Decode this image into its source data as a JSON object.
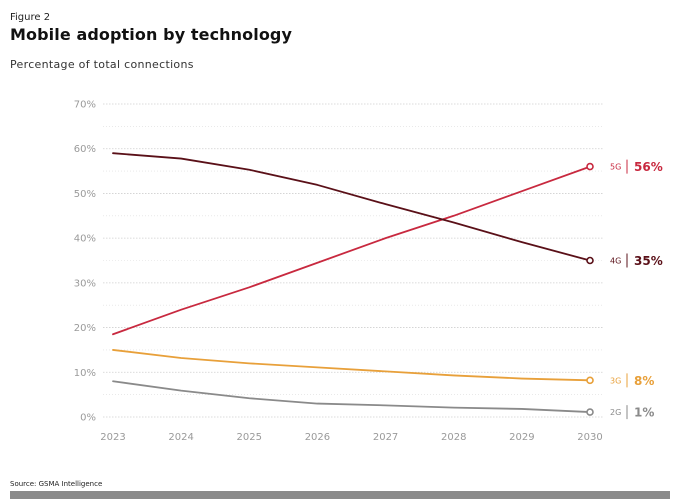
{
  "figure_label": "Figure 2",
  "title": "Mobile adoption by technology",
  "subtitle": "Percentage of total connections",
  "source": "Source: GSMA Intelligence",
  "chart_data": {
    "type": "line",
    "title": "Mobile adoption by technology",
    "subtitle": "Percentage of total connections",
    "x": [
      "2023",
      "2024",
      "2025",
      "2026",
      "2027",
      "2028",
      "2029",
      "2030"
    ],
    "ylim": [
      0,
      70
    ],
    "yticks": [
      "0%",
      "10%",
      "20%",
      "30%",
      "40%",
      "50%",
      "60%",
      "70%"
    ],
    "grid": true,
    "series": [
      {
        "name": "5G",
        "end_label": "56%",
        "color": "#c8293f",
        "values": [
          18.5,
          24,
          29,
          34.5,
          40,
          45,
          50.5,
          56
        ]
      },
      {
        "name": "4G",
        "end_label": "35%",
        "color": "#5a1018",
        "values": [
          59,
          57.8,
          55.3,
          51.9,
          47.6,
          43.5,
          39.1,
          35
        ]
      },
      {
        "name": "3G",
        "end_label": "8%",
        "color": "#e8a03a",
        "values": [
          15,
          13.2,
          12,
          11.1,
          10.2,
          9.3,
          8.6,
          8.2
        ]
      },
      {
        "name": "2G",
        "end_label": "1%",
        "color": "#8a8a8a",
        "values": [
          8,
          5.9,
          4.2,
          3,
          2.6,
          2.1,
          1.8,
          1.1
        ]
      }
    ]
  }
}
